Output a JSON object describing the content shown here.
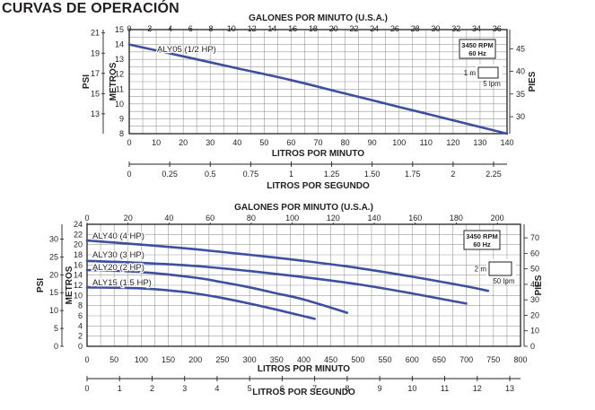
{
  "page_title": "CURVAS DE OPERACIÓN",
  "colors": {
    "curve": "#3d4fa0",
    "grid": "#9a9a9a",
    "frame": "#231f20",
    "text": "#231f20"
  },
  "chart_data": [
    {
      "type": "line",
      "title": "",
      "x_primary": {
        "label": "LITROS POR MINUTO",
        "range": [
          0,
          140
        ],
        "ticks": [
          0,
          10,
          20,
          30,
          40,
          50,
          60,
          70,
          80,
          90,
          100,
          110,
          120,
          130,
          140
        ]
      },
      "x_top": {
        "label": "GALONES POR MINUTO (U.S.A.)",
        "range": [
          0,
          36.99
        ],
        "ticks": [
          0,
          2,
          4,
          6,
          8,
          10,
          12,
          14,
          16,
          18,
          20,
          22,
          24,
          26,
          28,
          30,
          32,
          34,
          36
        ]
      },
      "x_bottom": {
        "label": "LITROS POR SEGUNDO",
        "range": [
          0,
          2.333
        ],
        "ticks": [
          "0",
          "0.25",
          "0.5",
          "0.75",
          "1",
          "1.25",
          "1.50",
          "1.75",
          "2",
          "2.25"
        ]
      },
      "y_primary": {
        "label": "METROS",
        "range": [
          8,
          15
        ],
        "ticks": [
          8,
          9,
          10,
          11,
          12,
          13,
          14,
          15
        ]
      },
      "y_psi": {
        "label": "PSI",
        "ticks": [
          13,
          15,
          17,
          19,
          21
        ]
      },
      "y_right": {
        "label": "PIES",
        "ticks": [
          30,
          35,
          40,
          45
        ]
      },
      "grid": true,
      "box_text": [
        "3450 RPM",
        "60 Hz"
      ],
      "scale_key": {
        "vertical": "1 m",
        "horizontal": "5 lpm"
      },
      "series": [
        {
          "name": "ALY05 (1/2 HP)",
          "x": [
            0,
            20,
            40,
            60,
            80,
            100,
            120,
            140
          ],
          "y": [
            14.0,
            13.2,
            12.4,
            11.6,
            10.7,
            9.8,
            8.9,
            8.0
          ]
        }
      ]
    },
    {
      "type": "line",
      "title": "",
      "x_primary": {
        "label": "LITROS POR MINUTO",
        "range": [
          0,
          800
        ],
        "ticks": [
          0,
          50,
          100,
          150,
          200,
          250,
          300,
          350,
          400,
          450,
          500,
          550,
          600,
          650,
          700,
          750,
          800
        ]
      },
      "x_top": {
        "label": "GALONES POR MINUTO (U.S.A.)",
        "range": [
          0,
          211.3
        ],
        "ticks": [
          0,
          20,
          40,
          60,
          80,
          100,
          120,
          140,
          160,
          180,
          200
        ]
      },
      "x_bottom": {
        "label": "LITROS POR SEGUNDO",
        "range": [
          0,
          13.33
        ],
        "ticks": [
          0,
          1,
          2,
          3,
          4,
          5,
          6,
          7,
          8,
          9,
          10,
          11,
          12,
          13
        ]
      },
      "y_primary": {
        "label": "METROS",
        "range": [
          0,
          24
        ],
        "ticks": [
          0,
          2,
          4,
          6,
          8,
          10,
          12,
          14,
          16,
          18,
          20,
          22,
          24
        ]
      },
      "y_psi": {
        "label": "PSI",
        "ticks": [
          0,
          5,
          10,
          15,
          20,
          25,
          30
        ]
      },
      "y_right": {
        "label": "PIES",
        "ticks": [
          0,
          10,
          20,
          30,
          40,
          50,
          60,
          70
        ]
      },
      "grid": true,
      "box_text": [
        "3450 RPM",
        "60 Hz"
      ],
      "scale_key": {
        "vertical": "2 m",
        "horizontal": "50 lpm"
      },
      "series": [
        {
          "name": "ALY40 (4 HP)",
          "x": [
            0,
            100,
            200,
            300,
            400,
            500,
            600,
            700,
            740
          ],
          "y": [
            20.8,
            20.0,
            19.1,
            18.0,
            16.8,
            15.4,
            13.7,
            11.8,
            10.9
          ]
        },
        {
          "name": "ALY30 (3 HP)",
          "x": [
            0,
            100,
            200,
            300,
            400,
            500,
            600,
            700
          ],
          "y": [
            16.8,
            16.4,
            15.8,
            14.8,
            13.6,
            12.2,
            10.4,
            8.4
          ]
        },
        {
          "name": "ALY20 (2 HP)",
          "x": [
            0,
            100,
            200,
            250,
            300,
            350,
            400,
            480
          ],
          "y": [
            15.0,
            14.6,
            13.5,
            12.6,
            11.6,
            10.4,
            9.2,
            6.6
          ]
        },
        {
          "name": "ALY15 (1.5 HP)",
          "x": [
            0,
            100,
            150,
            200,
            250,
            300,
            350,
            420
          ],
          "y": [
            11.6,
            11.4,
            11.0,
            10.4,
            9.5,
            8.4,
            7.2,
            5.4
          ]
        }
      ]
    }
  ]
}
